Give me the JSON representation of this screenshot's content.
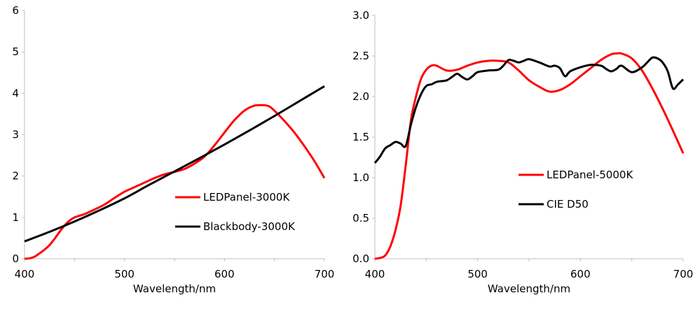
{
  "chart_data": [
    {
      "type": "line",
      "xlabel": "Wavelength/nm",
      "ylabel": "",
      "xlim": [
        400,
        700
      ],
      "ylim": [
        0,
        6
      ],
      "x_ticks": [
        "400",
        "500",
        "600",
        "700"
      ],
      "y_ticks": [
        "0",
        "1",
        "2",
        "3",
        "4",
        "5",
        "6"
      ],
      "legend_position": "center-right",
      "grid": false,
      "series": [
        {
          "name": "LEDPanel-3000K",
          "color": "#ff0000",
          "x": [
            400,
            405,
            410,
            415,
            420,
            425,
            430,
            435,
            440,
            445,
            450,
            460,
            470,
            480,
            490,
            500,
            510,
            520,
            530,
            540,
            550,
            560,
            570,
            580,
            590,
            600,
            610,
            620,
            630,
            640,
            645,
            650,
            660,
            670,
            680,
            690,
            700
          ],
          "y": [
            0.0,
            0.01,
            0.05,
            0.13,
            0.22,
            0.33,
            0.48,
            0.65,
            0.8,
            0.92,
            1.0,
            1.08,
            1.19,
            1.31,
            1.47,
            1.62,
            1.73,
            1.84,
            1.95,
            2.04,
            2.1,
            2.17,
            2.3,
            2.47,
            2.74,
            3.05,
            3.35,
            3.58,
            3.7,
            3.71,
            3.68,
            3.58,
            3.33,
            3.05,
            2.72,
            2.36,
            1.95
          ]
        },
        {
          "name": "Blackbody-3000K",
          "color": "#000000",
          "x": [
            400,
            425,
            450,
            475,
            500,
            525,
            550,
            575,
            600,
            625,
            650,
            675,
            700
          ],
          "y": [
            0.42,
            0.65,
            0.9,
            1.17,
            1.46,
            1.79,
            2.11,
            2.43,
            2.76,
            3.1,
            3.45,
            3.81,
            4.17
          ]
        }
      ]
    },
    {
      "type": "line",
      "xlabel": "Wavelength/nm",
      "ylabel": "",
      "xlim": [
        400,
        700
      ],
      "ylim": [
        0,
        3
      ],
      "x_ticks": [
        "400",
        "500",
        "600",
        "700"
      ],
      "y_ticks": [
        "0.0",
        "0.5",
        "1.0",
        "1.5",
        "2.0",
        "2.5",
        "3.0"
      ],
      "legend_position": "center-right",
      "grid": false,
      "series": [
        {
          "name": "LEDPanel-5000K",
          "color": "#ff0000",
          "x": [
            400,
            405,
            410,
            415,
            420,
            425,
            430,
            435,
            440,
            445,
            450,
            455,
            460,
            470,
            480,
            490,
            500,
            510,
            520,
            530,
            540,
            550,
            560,
            570,
            580,
            590,
            600,
            610,
            620,
            630,
            635,
            640,
            650,
            660,
            670,
            680,
            690,
            700
          ],
          "y": [
            0.0,
            0.01,
            0.04,
            0.15,
            0.35,
            0.65,
            1.15,
            1.7,
            2.0,
            2.22,
            2.33,
            2.38,
            2.38,
            2.32,
            2.33,
            2.38,
            2.42,
            2.44,
            2.44,
            2.42,
            2.32,
            2.2,
            2.12,
            2.06,
            2.08,
            2.15,
            2.25,
            2.35,
            2.45,
            2.52,
            2.53,
            2.53,
            2.47,
            2.32,
            2.1,
            1.85,
            1.58,
            1.3
          ]
        },
        {
          "name": "CIE D50",
          "color": "#000000",
          "x": [
            400,
            405,
            410,
            415,
            420,
            425,
            430,
            435,
            440,
            445,
            450,
            455,
            460,
            465,
            470,
            475,
            480,
            485,
            490,
            495,
            500,
            510,
            520,
            525,
            530,
            535,
            540,
            545,
            550,
            560,
            570,
            575,
            580,
            585,
            590,
            600,
            610,
            620,
            625,
            630,
            635,
            640,
            650,
            660,
            665,
            670,
            675,
            680,
            685,
            690,
            695,
            700
          ],
          "y": [
            1.18,
            1.26,
            1.36,
            1.4,
            1.44,
            1.42,
            1.39,
            1.65,
            1.87,
            2.03,
            2.13,
            2.15,
            2.18,
            2.19,
            2.2,
            2.24,
            2.28,
            2.24,
            2.21,
            2.25,
            2.3,
            2.32,
            2.33,
            2.38,
            2.45,
            2.44,
            2.42,
            2.44,
            2.46,
            2.42,
            2.37,
            2.38,
            2.35,
            2.25,
            2.31,
            2.36,
            2.39,
            2.38,
            2.34,
            2.31,
            2.34,
            2.38,
            2.3,
            2.36,
            2.42,
            2.48,
            2.47,
            2.42,
            2.31,
            2.1,
            2.15,
            2.21
          ]
        }
      ]
    }
  ]
}
